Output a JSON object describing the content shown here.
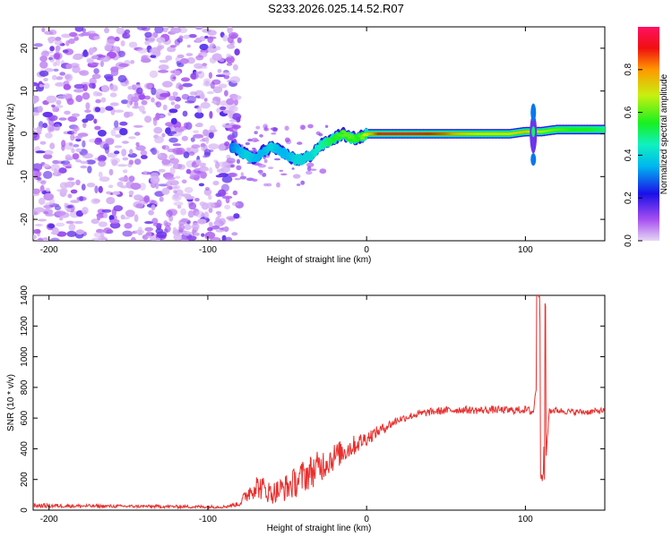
{
  "title": "S233.2026.025.14.52.R07",
  "chart_data": [
    {
      "type": "heatmap",
      "xlabel": "Height of straight line (km)",
      "ylabel": "Frequency (Hz)",
      "xlim": [
        -210,
        150
      ],
      "ylim": [
        -25,
        25
      ],
      "xticks": [
        -200,
        -100,
        0,
        100
      ],
      "yticks": [
        -20,
        -10,
        0,
        10,
        20
      ],
      "colorbar": {
        "label": "Normalized spectral amplitude",
        "ticks": [
          0.0,
          0.2,
          0.4,
          0.6,
          0.8
        ],
        "range": [
          0,
          1
        ]
      },
      "noise_region": {
        "x_from": -210,
        "x_to": -85,
        "freq_from": -25,
        "freq_to": 25
      },
      "ridge": {
        "x": [
          -85,
          -80,
          -75,
          -70,
          -65,
          -60,
          -55,
          -50,
          -45,
          -40,
          -35,
          -30,
          -25,
          -20,
          -15,
          -10,
          -5,
          0,
          10,
          20,
          30,
          40,
          50,
          60,
          70,
          80,
          90,
          100,
          110,
          120,
          130,
          140,
          150
        ],
        "freq": [
          -3,
          -4,
          -5,
          -6,
          -4,
          -3,
          -4,
          -5,
          -6,
          -6,
          -5,
          -3,
          -2,
          -1,
          0,
          -1,
          -1,
          0,
          0,
          0,
          0,
          0,
          0,
          0,
          0,
          0,
          0,
          0.5,
          0.5,
          1,
          1,
          1,
          1
        ],
        "amplitude": [
          0.3,
          0.35,
          0.4,
          0.35,
          0.35,
          0.4,
          0.35,
          0.35,
          0.4,
          0.4,
          0.4,
          0.45,
          0.5,
          0.55,
          0.6,
          0.6,
          0.55,
          0.7,
          0.95,
          0.95,
          0.95,
          0.9,
          0.85,
          0.75,
          0.7,
          0.7,
          0.7,
          0.75,
          0.65,
          0.6,
          0.55,
          0.55,
          0.5
        ]
      }
    },
    {
      "type": "line",
      "xlabel": "Height of straight line (km)",
      "ylabel": "SNR (10 * v/v)",
      "xlim": [
        -210,
        150
      ],
      "ylim": [
        0,
        1400
      ],
      "xticks": [
        -200,
        -100,
        0,
        100
      ],
      "yticks": [
        0,
        200,
        400,
        600,
        800,
        1000,
        1200,
        1400
      ],
      "series": [
        {
          "name": "SNR",
          "color": "#e8302e",
          "x": [
            -210,
            -190,
            -170,
            -150,
            -130,
            -110,
            -90,
            -80,
            -75,
            -70,
            -65,
            -60,
            -55,
            -50,
            -45,
            -40,
            -35,
            -30,
            -25,
            -20,
            -15,
            -10,
            -5,
            0,
            5,
            10,
            15,
            20,
            30,
            40,
            50,
            60,
            70,
            80,
            90,
            100,
            105,
            108,
            110,
            112,
            115,
            120,
            130,
            140,
            150
          ],
          "values": [
            30,
            28,
            26,
            25,
            24,
            22,
            22,
            40,
            110,
            160,
            140,
            110,
            130,
            150,
            180,
            220,
            250,
            280,
            320,
            350,
            380,
            410,
            440,
            470,
            500,
            530,
            560,
            590,
            620,
            640,
            650,
            655,
            650,
            655,
            650,
            655,
            640,
            900,
            1420,
            200,
            650,
            650,
            640,
            640,
            650
          ],
          "amplitude": [
            15,
            12,
            12,
            10,
            10,
            10,
            10,
            15,
            60,
            80,
            80,
            70,
            80,
            90,
            100,
            110,
            110,
            110,
            100,
            90,
            80,
            70,
            60,
            50,
            40,
            35,
            30,
            25,
            25,
            25,
            25,
            25,
            25,
            25,
            25,
            25,
            30,
            0,
            0,
            0,
            25,
            20,
            20,
            20,
            20
          ]
        }
      ]
    }
  ]
}
